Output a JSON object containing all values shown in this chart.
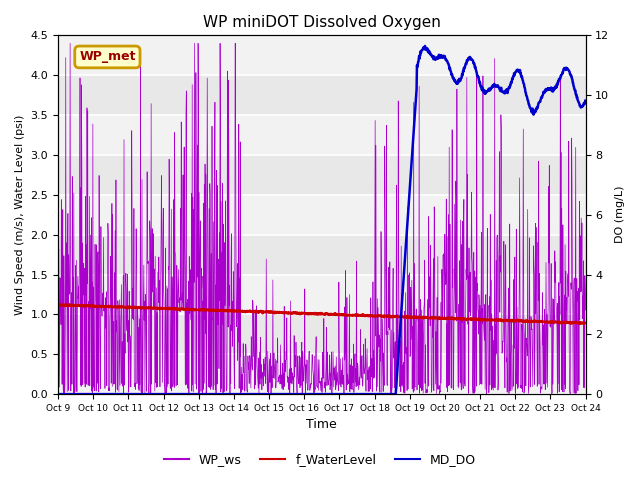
{
  "title": "WP miniDOT Dissolved Oxygen",
  "ylabel_left": "Wind Speed (m/s), Water Level (psi)",
  "ylabel_right": "DO (mg/L)",
  "xlabel": "Time",
  "ylim_left": [
    0,
    4.5
  ],
  "ylim_right": [
    0,
    12
  ],
  "background_color": "#ffffff",
  "plot_bg_color": "#e8e8e8",
  "annotation_label": "WP_met",
  "annotation_color": "#990000",
  "annotation_bg": "#ffffcc",
  "annotation_edge": "#cc9900",
  "legend_labels": [
    "WP_ws",
    "f_WaterLevel",
    "MD_DO"
  ],
  "ws_color": "#aa00cc",
  "wl_color": "#cc0000",
  "do_color": "#0000cc",
  "x_tick_labels": [
    "Oct 9",
    "Oct 10",
    "Oct 11",
    "Oct 12",
    "Oct 13",
    "Oct 14",
    "Oct 15",
    "Oct 16",
    "Oct 17",
    "Oct 18",
    "Oct 19",
    "Oct 20",
    "Oct 21",
    "Oct 22",
    "Oct 23",
    "Oct 24"
  ],
  "x_tick_positions": [
    0,
    1,
    2,
    3,
    4,
    5,
    6,
    7,
    8,
    9,
    10,
    11,
    12,
    13,
    14,
    15
  ],
  "yticks_left": [
    0.0,
    0.5,
    1.0,
    1.5,
    2.0,
    2.5,
    3.0,
    3.5,
    4.0,
    4.5
  ],
  "yticks_right": [
    0,
    2,
    4,
    6,
    8,
    10,
    12
  ],
  "wl_start_val": 1.12,
  "wl_end_val": 0.89,
  "do_rise_day": 9.6,
  "do_peak_day": 11.0,
  "do_peak_val": 11.3,
  "n_days": 15,
  "n_per_day": 96
}
